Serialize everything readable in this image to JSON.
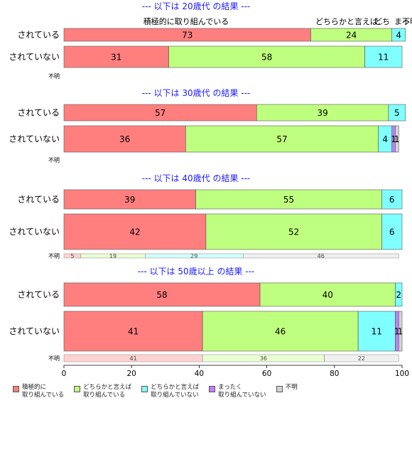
{
  "chart_data": {
    "type": "bar",
    "orientation": "horizontal",
    "stacked": true,
    "xlim": [
      0,
      100
    ],
    "x_ticks": [
      0,
      20,
      40,
      60,
      80,
      100
    ],
    "categories": [
      "積極的に\n取り組んでいる",
      "どちらかと言えば\n取り組んでいる",
      "どちらかと言えば\n取り組んでいない",
      "まったく\n取り組んでいない",
      "不明"
    ],
    "colors": [
      "#ff7f7f",
      "#bfff7f",
      "#7fffff",
      "#bf7fff",
      "#d3d3d3"
    ],
    "top_labels": [
      "積極的に取り組んでいる",
      "どちらかと言えば..",
      "どち",
      "まっ",
      "不明"
    ],
    "panels": [
      {
        "title": "--- 以下は 20歳代 の結果 ---",
        "rows": [
          {
            "label": "されている",
            "values": [
              73,
              24,
              4,
              0,
              0
            ]
          },
          {
            "label": "されていない",
            "values": [
              31,
              58,
              11,
              0,
              0
            ]
          }
        ],
        "unknown": {
          "label": "不明",
          "values": []
        }
      },
      {
        "title": "--- 以下は 30歳代 の結果 ---",
        "rows": [
          {
            "label": "されている",
            "values": [
              57,
              39,
              5,
              0,
              0
            ]
          },
          {
            "label": "されていない",
            "values": [
              36,
              57,
              4,
              1,
              1
            ]
          }
        ],
        "unknown": {
          "label": "不明",
          "values": []
        }
      },
      {
        "title": "--- 以下は 40歳代 の結果 ---",
        "rows": [
          {
            "label": "されている",
            "values": [
              39,
              55,
              6,
              0,
              0
            ]
          },
          {
            "label": "されていない",
            "values": [
              42,
              52,
              6,
              0,
              0
            ]
          }
        ],
        "unknown": {
          "label": "不明",
          "values": [
            5,
            19,
            29,
            0,
            46
          ]
        }
      },
      {
        "title": "--- 以下は 50歳以上 の結果 ---",
        "rows": [
          {
            "label": "されている",
            "values": [
              58,
              40,
              2,
              0,
              0
            ]
          },
          {
            "label": "されていない",
            "values": [
              41,
              46,
              11,
              1,
              1
            ]
          }
        ],
        "unknown": {
          "label": "不明",
          "values": [
            41,
            36,
            0,
            0,
            22
          ]
        }
      }
    ]
  }
}
